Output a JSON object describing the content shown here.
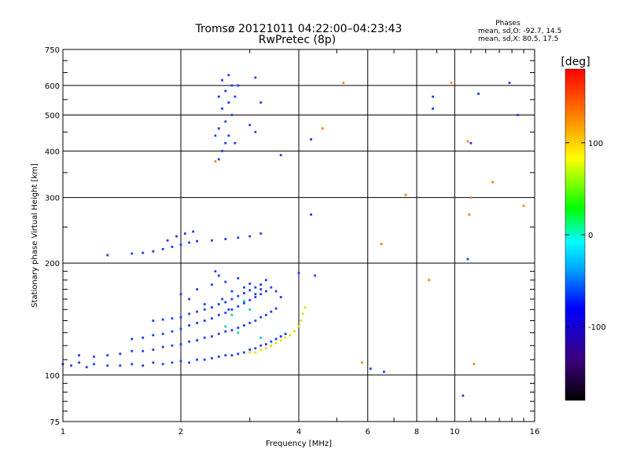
{
  "chart_data": {
    "type": "scatter",
    "title": "Tromsø 20121011 04:22:00–04:23:43",
    "subtitle": "RwPretec (8p)",
    "xlabel": "Frequency [MHz]",
    "ylabel": "Stationary phase Virtual Height [km]",
    "x_scale": "log",
    "y_scale": "log",
    "xlim": [
      1,
      16
    ],
    "ylim": [
      75,
      750
    ],
    "x_ticks": [
      1,
      2,
      4,
      6,
      8,
      10,
      16
    ],
    "x_tick_labels": [
      "1",
      "2",
      "4",
      "6",
      "8",
      "10",
      "16"
    ],
    "y_ticks": [
      75,
      100,
      200,
      300,
      400,
      500,
      600,
      750
    ],
    "y_tick_labels": [
      "75",
      "100",
      "200",
      "300",
      "400",
      "500",
      "600",
      "750"
    ],
    "grid": true,
    "legend": {
      "title": "Phases",
      "lines": [
        "mean, sd,O: -92.7, 14.5",
        "mean, sd,X:  80.5, 17.5"
      ],
      "placement": "top-right"
    },
    "colorbar": {
      "label": "[deg]",
      "ticks": [
        100,
        0,
        -100
      ],
      "tick_labels": [
        "100",
        "0",
        "-100"
      ],
      "range": [
        -180,
        180
      ],
      "colors": [
        "#000000",
        "#3c007a",
        "#0000ff",
        "#00aaff",
        "#00ffff",
        "#00ff00",
        "#ffff00",
        "#ff8000",
        "#ff0000"
      ]
    },
    "series": [
      {
        "region": "lower trace",
        "color": "#1a3cff",
        "points": [
          [
            1.0,
            107
          ],
          [
            1.05,
            106
          ],
          [
            1.1,
            108
          ],
          [
            1.15,
            105
          ],
          [
            1.2,
            107
          ],
          [
            1.3,
            106
          ],
          [
            1.4,
            106
          ],
          [
            1.5,
            107
          ],
          [
            1.6,
            106
          ],
          [
            1.7,
            108
          ],
          [
            1.8,
            107
          ],
          [
            1.9,
            108
          ],
          [
            2.0,
            109
          ],
          [
            2.1,
            108
          ],
          [
            2.2,
            110
          ],
          [
            2.3,
            110
          ],
          [
            2.4,
            111
          ],
          [
            2.5,
            112
          ],
          [
            2.6,
            113
          ],
          [
            2.7,
            113
          ],
          [
            2.8,
            114
          ],
          [
            2.9,
            115
          ],
          [
            3.0,
            117
          ],
          [
            3.1,
            118
          ],
          [
            3.2,
            120
          ],
          [
            3.3,
            121
          ],
          [
            3.4,
            123
          ],
          [
            3.5,
            125
          ],
          [
            3.6,
            127
          ],
          [
            3.7,
            129
          ]
        ]
      },
      {
        "region": "band 2",
        "color": "#1a3cff",
        "points": [
          [
            1.1,
            113
          ],
          [
            1.2,
            112
          ],
          [
            1.3,
            113
          ],
          [
            1.4,
            114
          ],
          [
            1.5,
            116
          ],
          [
            1.6,
            116
          ],
          [
            1.7,
            117
          ],
          [
            1.8,
            119
          ],
          [
            1.9,
            120
          ],
          [
            2.0,
            121
          ],
          [
            2.1,
            123
          ],
          [
            2.2,
            124
          ],
          [
            2.3,
            126
          ],
          [
            2.4,
            127
          ],
          [
            2.5,
            129
          ],
          [
            2.6,
            131
          ],
          [
            2.7,
            132
          ],
          [
            2.8,
            134
          ],
          [
            2.9,
            136
          ],
          [
            3.0,
            138
          ],
          [
            3.1,
            140
          ],
          [
            3.2,
            143
          ],
          [
            3.3,
            145
          ],
          [
            3.4,
            148
          ],
          [
            3.5,
            151
          ]
        ]
      },
      {
        "region": "band 3",
        "color": "#1a3cff",
        "points": [
          [
            1.5,
            125
          ],
          [
            1.6,
            126
          ],
          [
            1.7,
            128
          ],
          [
            1.8,
            129
          ],
          [
            1.9,
            131
          ],
          [
            2.0,
            133
          ],
          [
            2.1,
            136
          ],
          [
            2.2,
            138
          ],
          [
            2.3,
            140
          ],
          [
            2.4,
            142
          ],
          [
            2.5,
            145
          ],
          [
            2.6,
            147
          ],
          [
            2.7,
            150
          ],
          [
            2.8,
            153
          ],
          [
            2.9,
            156
          ],
          [
            3.0,
            159
          ],
          [
            3.1,
            162
          ],
          [
            3.2,
            165
          ],
          [
            3.3,
            168
          ]
        ]
      },
      {
        "region": "band 4",
        "color": "#1a3cff",
        "points": [
          [
            1.7,
            140
          ],
          [
            1.8,
            141
          ],
          [
            1.9,
            142
          ],
          [
            2.0,
            143
          ],
          [
            2.1,
            146
          ],
          [
            2.2,
            148
          ],
          [
            2.3,
            150
          ],
          [
            2.4,
            152
          ],
          [
            2.5,
            155
          ],
          [
            2.6,
            157
          ],
          [
            2.7,
            160
          ],
          [
            2.8,
            163
          ],
          [
            2.9,
            166
          ],
          [
            3.0,
            169
          ],
          [
            3.1,
            172
          ],
          [
            3.2,
            175
          ]
        ]
      },
      {
        "region": "upper scatter",
        "color": "#1a3cff",
        "points": [
          [
            2.0,
            165
          ],
          [
            2.1,
            160
          ],
          [
            2.2,
            170
          ],
          [
            2.3,
            155
          ],
          [
            2.4,
            175
          ],
          [
            2.5,
            185
          ],
          [
            2.6,
            178
          ],
          [
            2.7,
            168
          ],
          [
            2.8,
            182
          ],
          [
            2.9,
            172
          ],
          [
            3.0,
            176
          ],
          [
            3.1,
            165
          ],
          [
            3.2,
            170
          ],
          [
            3.3,
            180
          ],
          [
            3.4,
            172
          ],
          [
            3.5,
            168
          ],
          [
            3.6,
            162
          ],
          [
            2.45,
            190
          ],
          [
            2.55,
            160
          ],
          [
            2.65,
            150
          ]
        ]
      },
      {
        "region": "yellow X trace",
        "color": "#e0e000",
        "points": [
          [
            3.0,
            115
          ],
          [
            3.1,
            115
          ],
          [
            3.2,
            117
          ],
          [
            3.3,
            118
          ],
          [
            3.4,
            120
          ],
          [
            3.5,
            122
          ],
          [
            3.6,
            124
          ],
          [
            3.7,
            126
          ],
          [
            3.8,
            128
          ],
          [
            3.9,
            131
          ],
          [
            4.0,
            135
          ],
          [
            4.05,
            140
          ],
          [
            4.1,
            146
          ],
          [
            4.15,
            152
          ]
        ]
      },
      {
        "region": "cyan points",
        "color": "#00cccc",
        "points": [
          [
            2.8,
            130
          ],
          [
            2.9,
            158
          ],
          [
            3.0,
            150
          ],
          [
            3.2,
            126
          ],
          [
            2.7,
            145
          ],
          [
            2.6,
            135
          ]
        ]
      },
      {
        "region": "F layer",
        "color": "#1a3cff",
        "points": [
          [
            1.3,
            210
          ],
          [
            1.5,
            212
          ],
          [
            1.6,
            213
          ],
          [
            1.7,
            215
          ],
          [
            1.8,
            218
          ],
          [
            1.9,
            221
          ],
          [
            2.0,
            224
          ],
          [
            2.1,
            227
          ],
          [
            2.2,
            229
          ],
          [
            2.4,
            230
          ],
          [
            2.6,
            232
          ],
          [
            2.8,
            234
          ],
          [
            3.0,
            236
          ],
          [
            3.2,
            240
          ],
          [
            1.85,
            230
          ],
          [
            1.95,
            236
          ],
          [
            2.05,
            240
          ],
          [
            2.15,
            243
          ]
        ]
      },
      {
        "region": "F column",
        "color": "#1a3cff",
        "points": [
          [
            2.5,
            380
          ],
          [
            2.55,
            400
          ],
          [
            2.6,
            420
          ],
          [
            2.65,
            440
          ],
          [
            2.5,
            460
          ],
          [
            2.6,
            480
          ],
          [
            2.7,
            500
          ],
          [
            2.55,
            520
          ],
          [
            2.65,
            540
          ],
          [
            2.5,
            560
          ],
          [
            2.6,
            580
          ],
          [
            2.7,
            600
          ],
          [
            2.55,
            620
          ],
          [
            2.65,
            640
          ],
          [
            2.75,
            420
          ],
          [
            2.45,
            440
          ],
          [
            2.75,
            560
          ],
          [
            2.8,
            600
          ]
        ]
      },
      {
        "region": "sparse",
        "color": "#1a3cff",
        "points": [
          [
            3.1,
            630
          ],
          [
            3.2,
            540
          ],
          [
            3.0,
            470
          ],
          [
            3.1,
            450
          ],
          [
            3.6,
            390
          ],
          [
            4.3,
            430
          ],
          [
            4.3,
            270
          ],
          [
            4.4,
            185
          ],
          [
            8.8,
            560
          ],
          [
            8.8,
            520
          ],
          [
            11.0,
            420
          ],
          [
            11.5,
            570
          ],
          [
            13.8,
            610
          ],
          [
            14.5,
            500
          ],
          [
            10.8,
            205
          ],
          [
            10.5,
            88
          ],
          [
            6.1,
            104
          ],
          [
            6.6,
            102
          ],
          [
            4.0,
            188
          ]
        ]
      },
      {
        "region": "sparse colored",
        "color": "#ff8000",
        "points": [
          [
            5.2,
            610
          ],
          [
            9.8,
            610
          ],
          [
            4.6,
            460
          ],
          [
            6.5,
            225
          ],
          [
            7.5,
            305
          ],
          [
            11.0,
            300
          ],
          [
            10.9,
            270
          ],
          [
            10.8,
            425
          ],
          [
            12.5,
            330
          ],
          [
            15.0,
            285
          ],
          [
            5.8,
            108
          ],
          [
            11.2,
            107
          ],
          [
            8.6,
            180
          ],
          [
            2.45,
            375
          ]
        ]
      }
    ]
  }
}
